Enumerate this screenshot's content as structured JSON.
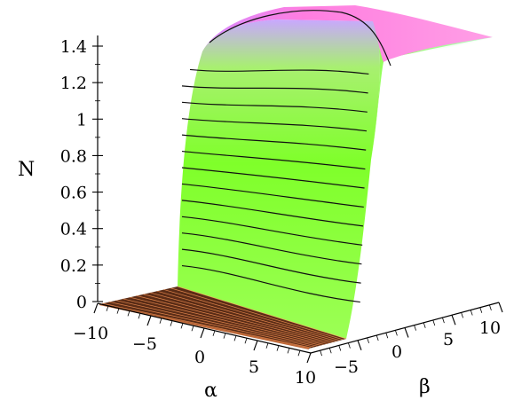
{
  "chart_data": {
    "type": "surface3d",
    "title": "",
    "colors": {
      "surface_low": "#6e3a20",
      "surface_mid": "#7fff2a",
      "surface_high": "#ff7de0",
      "contour": "#111111"
    },
    "axes": {
      "z": {
        "label": "N",
        "range": [
          0,
          1.45
        ],
        "ticks": [
          "0",
          "0.2",
          "0.4",
          "0.6",
          "0.8",
          "1",
          "1.2",
          "1.4"
        ]
      },
      "alpha": {
        "label": "α",
        "range": [
          -10,
          10
        ],
        "ticks": [
          "−10",
          "−5",
          "0",
          "5",
          "10"
        ]
      },
      "beta": {
        "label": "β",
        "range": [
          -10,
          10
        ],
        "ticks": [
          "−5",
          "0",
          "5",
          "10"
        ]
      }
    },
    "surface_profile_N_vs_beta": {
      "beta": [
        -10,
        -8,
        -6,
        -4,
        -3,
        -2,
        -1,
        0,
        1,
        2,
        3,
        4,
        6,
        8,
        10
      ],
      "N": [
        0,
        0,
        0,
        0.02,
        0.08,
        0.35,
        0.8,
        1.18,
        1.33,
        1.38,
        1.4,
        1.41,
        1.42,
        1.43,
        1.43
      ]
    },
    "contour_levels": [
      0.1,
      0.2,
      0.3,
      0.4,
      0.5,
      0.6,
      0.7,
      0.8,
      0.9,
      1.0,
      1.1,
      1.2,
      1.3,
      1.4
    ]
  }
}
